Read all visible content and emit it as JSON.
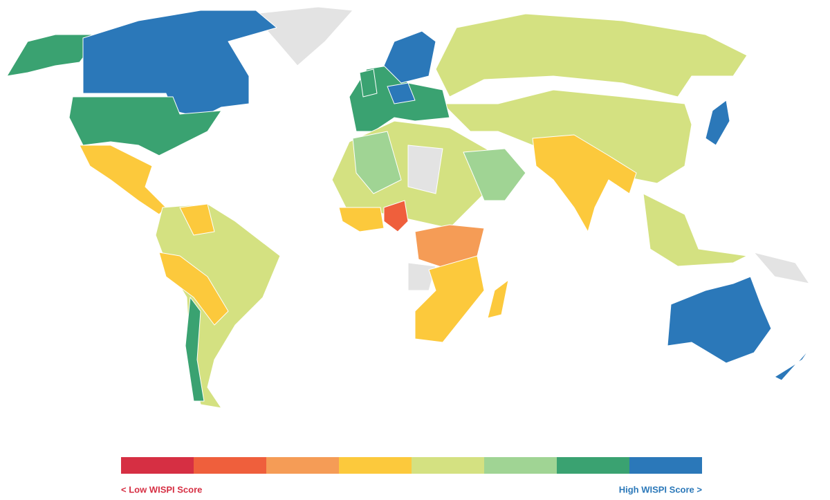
{
  "legend": {
    "colors": [
      "#d62f43",
      "#ef5f3c",
      "#f59c56",
      "#fcc93c",
      "#d4e181",
      "#a0d494",
      "#3aa271",
      "#2b78b9"
    ],
    "no_data_color": "#e3e3e3",
    "low_label": "< Low WISPI Score",
    "high_label": "High WISPI Score >"
  }
}
